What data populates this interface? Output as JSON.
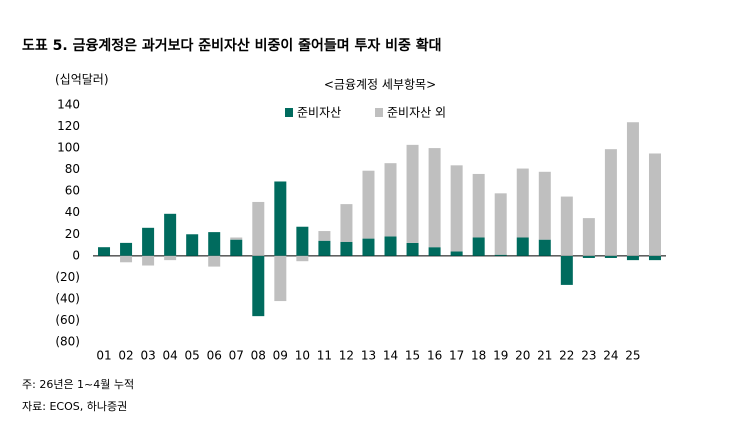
{
  "chart_data": {
    "type": "stacked_bar",
    "title": "도표 5. 금융계정은 과거보다 준비자산 비중이 줄어들며 투자 비중 확대",
    "subtitle": "<금융계정 세부항목>",
    "y_label": "(십억달러)",
    "categories": [
      "01",
      "02",
      "03",
      "04",
      "05",
      "06",
      "07",
      "08",
      "09",
      "10",
      "11",
      "12",
      "13",
      "14",
      "15",
      "16",
      "17",
      "18",
      "19",
      "20",
      "21",
      "22",
      "23",
      "24",
      "25",
      null
    ],
    "series": [
      {
        "name": "준비자산",
        "color": "#006b5e",
        "values": [
          8,
          12,
          26,
          39,
          20,
          22,
          15,
          -56,
          69,
          27,
          14,
          13,
          16,
          18,
          12,
          8,
          4,
          17,
          1,
          17,
          15,
          -27,
          -2,
          -2,
          -4,
          -4
        ]
      },
      {
        "name": "준비자산 외",
        "color": "#bfbfbf",
        "values": [
          0,
          -6,
          -9,
          -4,
          0,
          -10,
          2,
          50,
          -42,
          -5,
          9,
          35,
          63,
          68,
          91,
          92,
          80,
          59,
          57,
          64,
          63,
          55,
          35,
          99,
          124,
          95
        ]
      }
    ],
    "ylim": [
      -80,
      140
    ],
    "yticks": [
      {
        "value": -80,
        "label": "(80)"
      },
      {
        "value": -60,
        "label": "(60)"
      },
      {
        "value": -40,
        "label": "(40)"
      },
      {
        "value": -20,
        "label": "(20)"
      },
      0,
      20,
      40,
      60,
      80,
      100,
      120,
      140
    ],
    "legend": "top",
    "notes": [
      "주: 26년은 1~4월 누적",
      "자료: ECOS, 하나증권"
    ]
  }
}
